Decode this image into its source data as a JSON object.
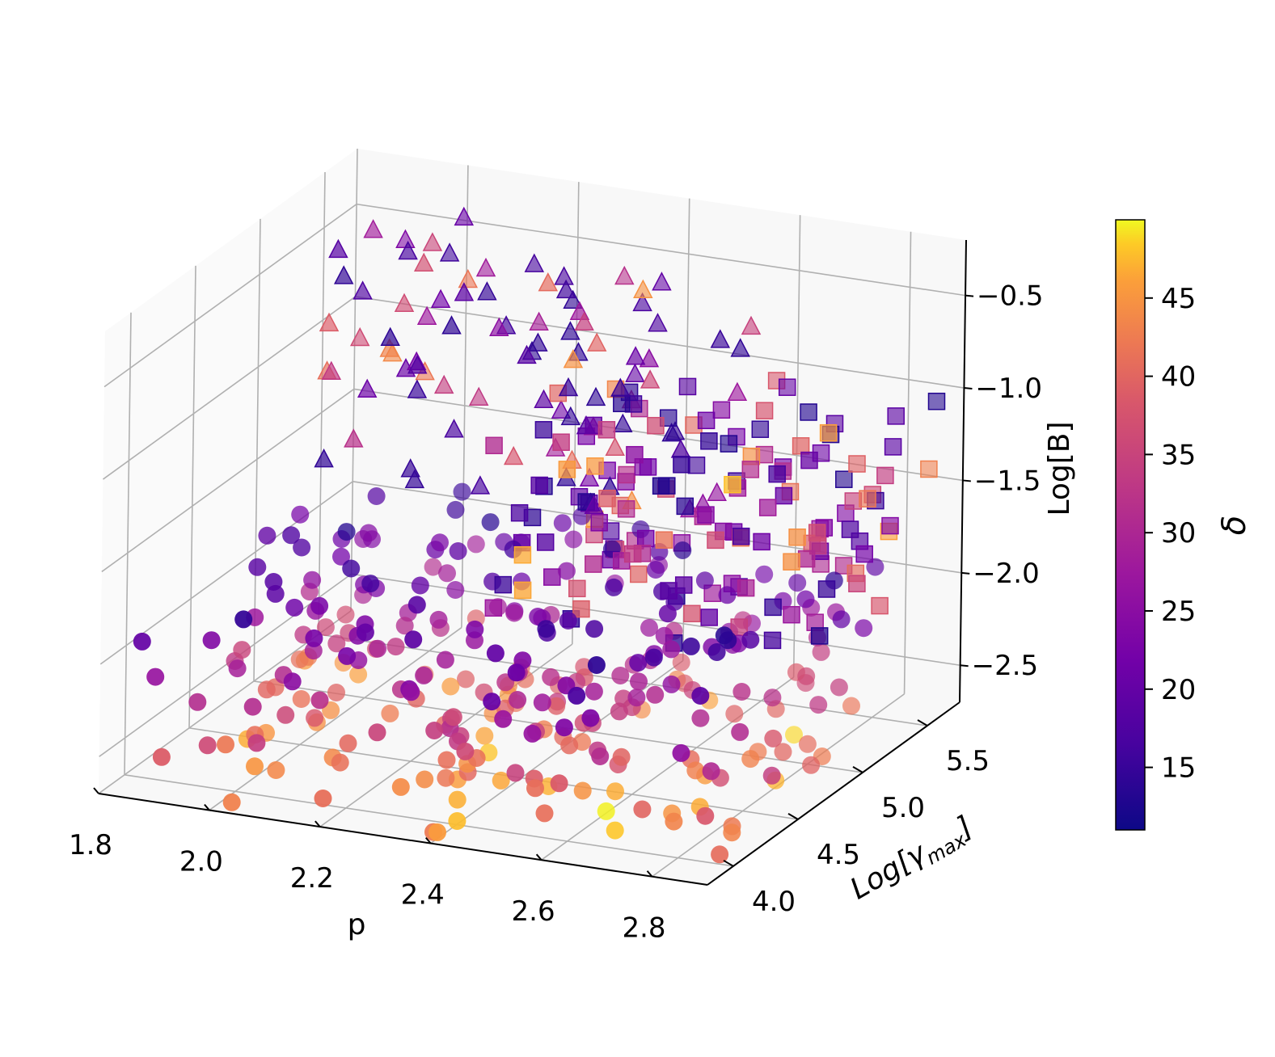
{
  "chart_data": {
    "type": "scatter",
    "projection": "3d",
    "title": "",
    "axes": {
      "x": {
        "label": "p",
        "ticks": [
          "1.8",
          "2.0",
          "2.2",
          "2.4",
          "2.6",
          "2.8"
        ],
        "lim": [
          1.8,
          2.9
        ]
      },
      "y": {
        "label_main": "Log[γ",
        "label_sub": "max",
        "label_end": "]",
        "ticks": [
          "4.0",
          "4.5",
          "5.0",
          "5.5"
        ],
        "lim": [
          3.8,
          5.75
        ]
      },
      "z": {
        "label": "Log[B]",
        "ticks": [
          "−2.5",
          "−2.0",
          "−1.5",
          "−1.0",
          "−0.5"
        ],
        "lim": [
          -2.7,
          -0.2
        ]
      }
    },
    "colorbar": {
      "label": "δ",
      "colormap": "plasma",
      "range": [
        11,
        50
      ],
      "ticks": [
        "15",
        "20",
        "25",
        "30",
        "35",
        "40",
        "45"
      ]
    },
    "grid": true,
    "marker_series": [
      {
        "marker": "triangle",
        "approx_count": 95,
        "p_range": [
          1.85,
          2.6
        ],
        "loggamma_range": [
          4.9,
          5.6
        ],
        "logB_range": [
          -1.6,
          -0.3
        ],
        "delta_range": [
          14,
          45
        ]
      },
      {
        "marker": "square",
        "approx_count": 150,
        "p_range": [
          2.3,
          2.9
        ],
        "loggamma_range": [
          4.6,
          5.6
        ],
        "logB_range": [
          -2.0,
          -0.9
        ],
        "delta_range": [
          13,
          48
        ]
      },
      {
        "marker": "circle",
        "approx_count": 300,
        "p_range": [
          1.85,
          2.9
        ],
        "loggamma_range": [
          3.8,
          5.3
        ],
        "logB_range": [
          -2.7,
          -1.6
        ],
        "delta_range": [
          12,
          50
        ]
      }
    ],
    "palette": [
      "#0d0887",
      "#6a00a8",
      "#b12a90",
      "#e16462",
      "#fca636",
      "#f0f921"
    ]
  }
}
